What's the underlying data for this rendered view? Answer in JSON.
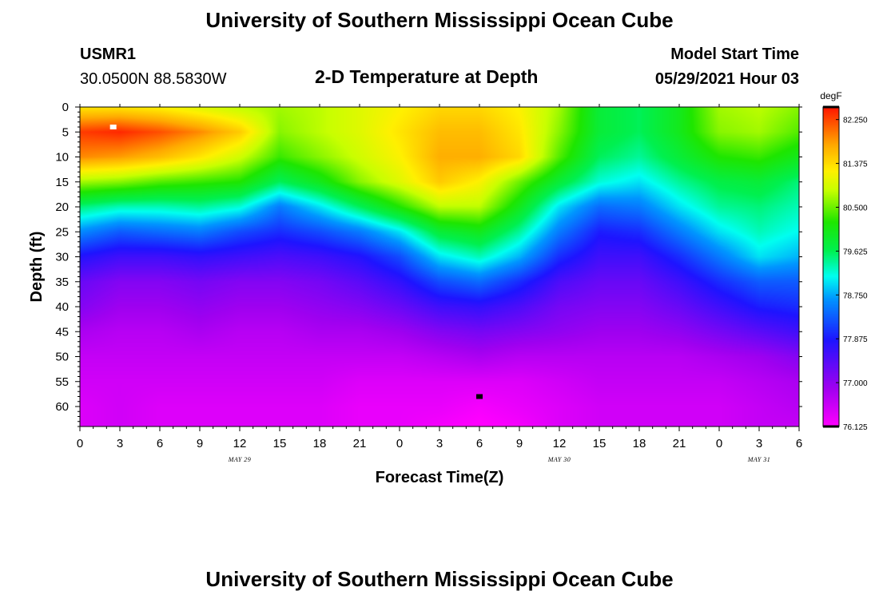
{
  "header": {
    "top_title": "University of Southern Mississippi Ocean Cube",
    "station_id": "USMR1",
    "coords": "30.0500N  88.5830W",
    "plot_title": "2-D Temperature at Depth",
    "model_start_label": "Model Start Time",
    "model_start_value": "05/29/2021 Hour 03",
    "bottom_title": "University of Southern Mississippi Ocean Cube"
  },
  "chart_data": {
    "type": "heatmap",
    "title": "2-D Temperature at Depth",
    "xlabel": "Forecast Time(Z)",
    "ylabel": "Depth (ft)",
    "x_ticks": [
      "0",
      "3",
      "6",
      "9",
      "12",
      "15",
      "18",
      "21",
      "0",
      "3",
      "6",
      "9",
      "12",
      "15",
      "18",
      "21",
      "0",
      "3",
      "6"
    ],
    "x_range_hours": [
      0,
      54
    ],
    "y_ticks": [
      "0",
      "5",
      "10",
      "15",
      "20",
      "25",
      "30",
      "35",
      "40",
      "45",
      "50",
      "55",
      "60"
    ],
    "y_range_ft": [
      0,
      64
    ],
    "date_labels": [
      {
        "label": "MAY 29",
        "hour": 12
      },
      {
        "label": "MAY 30",
        "hour": 36
      },
      {
        "label": "MAY 31",
        "hour": 51
      }
    ],
    "colorbar": {
      "unit": "degF",
      "labels": [
        "82.250",
        "81.375",
        "80.500",
        "79.625",
        "78.750",
        "77.875",
        "77.000",
        "76.125"
      ],
      "min": 76.125,
      "max": 82.5
    },
    "temperature_grid": {
      "times_hours": [
        0,
        3,
        6,
        9,
        12,
        15,
        18,
        21,
        24,
        27,
        30,
        33,
        36,
        39,
        42,
        45,
        48,
        51,
        54
      ],
      "depths_ft": [
        0,
        5,
        10,
        15,
        20,
        25,
        30,
        35,
        40,
        45,
        50,
        55,
        60,
        64
      ],
      "values_degF": [
        [
          81.3,
          81.3,
          81.2,
          81.0,
          80.8,
          80.7,
          80.8,
          81.0,
          81.2,
          81.4,
          81.4,
          81.2,
          80.7,
          79.8,
          79.6,
          80.0,
          80.7,
          80.8,
          80.6
        ],
        [
          82.3,
          82.4,
          82.2,
          81.9,
          81.5,
          80.6,
          80.8,
          81.0,
          81.3,
          81.6,
          81.6,
          81.3,
          80.6,
          79.8,
          79.6,
          80.0,
          80.6,
          80.7,
          80.4
        ],
        [
          81.9,
          81.8,
          81.6,
          81.3,
          80.9,
          80.3,
          80.6,
          80.9,
          81.2,
          81.7,
          81.7,
          81.4,
          80.4,
          79.6,
          79.4,
          79.8,
          80.2,
          80.3,
          80.0
        ],
        [
          80.7,
          80.6,
          80.4,
          80.3,
          80.2,
          79.6,
          80.0,
          80.6,
          81.0,
          81.5,
          81.2,
          80.5,
          79.8,
          79.2,
          79.0,
          79.4,
          79.7,
          79.8,
          79.5
        ],
        [
          79.5,
          79.3,
          79.3,
          79.4,
          79.2,
          78.5,
          79.0,
          79.6,
          80.2,
          80.8,
          80.8,
          80.0,
          79.0,
          78.4,
          78.5,
          79.0,
          79.4,
          79.5,
          79.3
        ],
        [
          78.6,
          78.3,
          78.4,
          78.5,
          78.2,
          78.0,
          78.2,
          78.5,
          79.0,
          79.8,
          80.0,
          79.4,
          78.5,
          77.9,
          78.0,
          78.5,
          79.0,
          79.3,
          79.1
        ],
        [
          77.8,
          77.6,
          77.6,
          77.7,
          77.6,
          77.5,
          77.6,
          77.8,
          78.2,
          79.0,
          79.3,
          78.8,
          78.0,
          77.6,
          77.6,
          78.0,
          78.5,
          79.0,
          78.8
        ],
        [
          77.3,
          77.1,
          77.1,
          77.2,
          77.1,
          77.1,
          77.2,
          77.4,
          77.7,
          78.2,
          78.4,
          78.0,
          77.5,
          77.3,
          77.3,
          77.6,
          78.0,
          78.3,
          78.3
        ],
        [
          77.1,
          76.9,
          76.9,
          77.0,
          76.9,
          76.9,
          77.0,
          77.1,
          77.3,
          77.6,
          77.7,
          77.5,
          77.2,
          77.1,
          77.1,
          77.3,
          77.6,
          77.9,
          78.0
        ],
        [
          76.8,
          76.7,
          76.7,
          76.8,
          76.7,
          76.7,
          76.8,
          76.8,
          76.9,
          77.1,
          77.2,
          77.1,
          77.0,
          76.9,
          76.9,
          77.0,
          77.2,
          77.4,
          77.6
        ],
        [
          76.6,
          76.6,
          76.6,
          76.6,
          76.6,
          76.6,
          76.6,
          76.6,
          76.6,
          76.7,
          76.8,
          76.7,
          76.7,
          76.7,
          76.7,
          76.7,
          76.8,
          76.9,
          77.1
        ],
        [
          76.5,
          76.5,
          76.5,
          76.5,
          76.5,
          76.5,
          76.5,
          76.4,
          76.4,
          76.4,
          76.4,
          76.4,
          76.5,
          76.6,
          76.6,
          76.6,
          76.6,
          76.7,
          76.8
        ],
        [
          76.4,
          76.5,
          76.4,
          76.4,
          76.4,
          76.4,
          76.4,
          76.3,
          76.3,
          76.3,
          76.2,
          76.3,
          76.4,
          76.5,
          76.5,
          76.5,
          76.5,
          76.6,
          76.7
        ],
        [
          76.4,
          76.5,
          76.4,
          76.4,
          76.4,
          76.4,
          76.4,
          76.3,
          76.3,
          76.2,
          76.1,
          76.2,
          76.4,
          76.5,
          76.5,
          76.5,
          76.5,
          76.6,
          76.6
        ]
      ]
    },
    "markers": [
      {
        "name": "max-marker",
        "hour": 2.5,
        "depth": 4,
        "color": "#ffffff"
      },
      {
        "name": "min-marker",
        "hour": 30,
        "depth": 58,
        "color": "#000000"
      }
    ]
  }
}
